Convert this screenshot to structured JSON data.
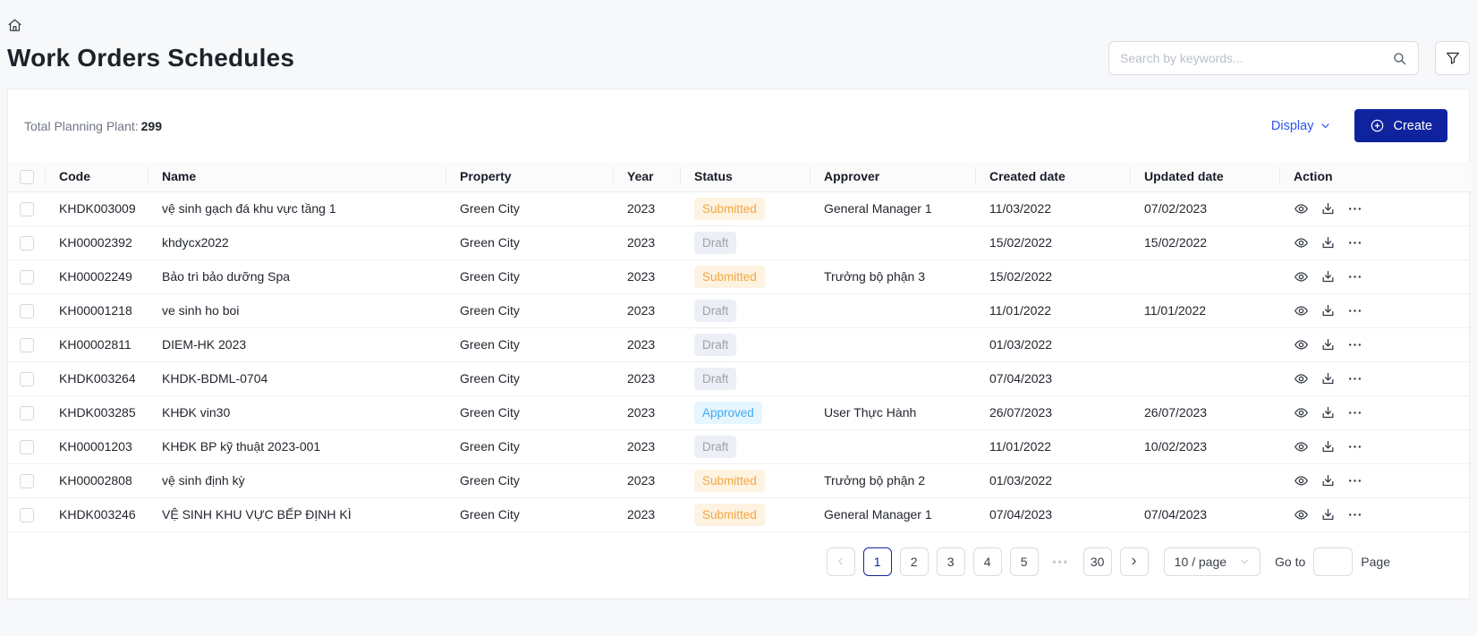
{
  "header": {
    "title": "Work Orders Schedules"
  },
  "search": {
    "placeholder": "Search by keywords..."
  },
  "toolbar": {
    "total_label": "Total Planning Plant:",
    "total_value": "299",
    "display_label": "Display",
    "create_label": "Create"
  },
  "table": {
    "columns": [
      "Code",
      "Name",
      "Property",
      "Year",
      "Status",
      "Approver",
      "Created date",
      "Updated date",
      "Action"
    ],
    "row_actions": [
      "view",
      "download",
      "more"
    ],
    "rows": [
      {
        "code": "KHDK003009",
        "name": "vệ sinh gạch đá khu vực tầng 1",
        "property": "Green City",
        "year": "2023",
        "status": "Submitted",
        "approver": "General Manager 1",
        "created": "11/03/2022",
        "updated": "07/02/2023"
      },
      {
        "code": "KH00002392",
        "name": "khdycx2022",
        "property": "Green City",
        "year": "2023",
        "status": "Draft",
        "approver": "",
        "created": "15/02/2022",
        "updated": "15/02/2022"
      },
      {
        "code": "KH00002249",
        "name": "Bảo trì bảo dưỡng Spa",
        "property": "Green City",
        "year": "2023",
        "status": "Submitted",
        "approver": "Trưởng bộ phận 3",
        "created": "15/02/2022",
        "updated": ""
      },
      {
        "code": "KH00001218",
        "name": "ve sinh ho boi",
        "property": "Green City",
        "year": "2023",
        "status": "Draft",
        "approver": "",
        "created": "11/01/2022",
        "updated": "11/01/2022"
      },
      {
        "code": "KH00002811",
        "name": "DIEM-HK 2023",
        "property": "Green City",
        "year": "2023",
        "status": "Draft",
        "approver": "",
        "created": "01/03/2022",
        "updated": ""
      },
      {
        "code": "KHDK003264",
        "name": "KHDK-BDML-0704",
        "property": "Green City",
        "year": "2023",
        "status": "Draft",
        "approver": "",
        "created": "07/04/2023",
        "updated": ""
      },
      {
        "code": "KHDK003285",
        "name": "KHĐK vin30",
        "property": "Green City",
        "year": "2023",
        "status": "Approved",
        "approver": "User Thực Hành",
        "created": "26/07/2023",
        "updated": "26/07/2023"
      },
      {
        "code": "KH00001203",
        "name": "KHĐK BP kỹ thuật 2023-001",
        "property": "Green City",
        "year": "2023",
        "status": "Draft",
        "approver": "",
        "created": "11/01/2022",
        "updated": "10/02/2023"
      },
      {
        "code": "KH00002808",
        "name": "vệ sinh định kỳ",
        "property": "Green City",
        "year": "2023",
        "status": "Submitted",
        "approver": "Trưởng bộ phận 2",
        "created": "01/03/2022",
        "updated": ""
      },
      {
        "code": "KHDK003246",
        "name": "VỆ SINH KHU VỰC BẾP ĐỊNH KÌ",
        "property": "Green City",
        "year": "2023",
        "status": "Submitted",
        "approver": "General Manager 1",
        "created": "07/04/2023",
        "updated": "07/04/2023"
      }
    ]
  },
  "status_styles": {
    "Submitted": {
      "bg": "#fdf3e0",
      "fg": "#f5a742"
    },
    "Draft": {
      "bg": "#eceff5",
      "fg": "#9aa1ae"
    },
    "Approved": {
      "bg": "#e6f6fe",
      "fg": "#40a9f5"
    }
  },
  "pagination": {
    "items": [
      {
        "label": "‹",
        "type": "prev",
        "disabled": true
      },
      {
        "label": "1",
        "type": "page",
        "active": true
      },
      {
        "label": "2",
        "type": "page"
      },
      {
        "label": "3",
        "type": "page"
      },
      {
        "label": "4",
        "type": "page"
      },
      {
        "label": "5",
        "type": "page"
      },
      {
        "label": "•••",
        "type": "ellipsis"
      },
      {
        "label": "30",
        "type": "page"
      },
      {
        "label": "›",
        "type": "next"
      }
    ],
    "page_size": "10 / page",
    "goto_label": "Go to",
    "page_label": "Page"
  },
  "colors": {
    "accent_blue": "#2f54eb",
    "primary_dark_blue": "#10239e"
  }
}
